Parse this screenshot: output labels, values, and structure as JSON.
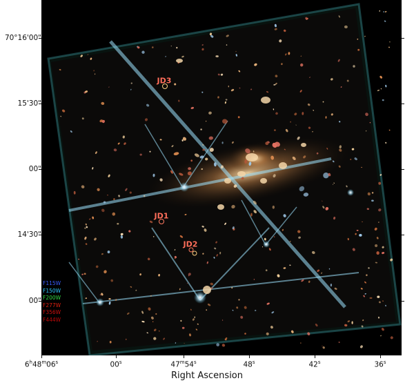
{
  "image": {
    "description_colors": {
      "background": "#000000",
      "edge_glow": "#0a2a2e"
    }
  },
  "axes": {
    "xlabel": "Right Ascension",
    "yticks": [
      "70°16'00\"",
      "15'30\"",
      "00\"",
      "14'30\"",
      "00\""
    ],
    "xticks": [
      {
        "main": "6",
        "sup1": "h",
        "mid": "48",
        "sup2": "m",
        "end": "06",
        "sup3": "s"
      },
      {
        "main": "00",
        "sup3": "s"
      },
      {
        "main": "47",
        "sup2": "m",
        "end": "54",
        "sup3": "s"
      },
      {
        "main": "48",
        "sup3": "s"
      },
      {
        "main": "42",
        "sup3": "s"
      },
      {
        "main": "36",
        "sup3": "s"
      }
    ]
  },
  "labels": [
    {
      "text": "JD3",
      "color": "#ff6e5a"
    },
    {
      "text": "JD1",
      "color": "#ff6e5a"
    },
    {
      "text": "JD2",
      "color": "#ff6e5a"
    }
  ],
  "legend": [
    {
      "text": "F115W",
      "color": "#3a5cff"
    },
    {
      "text": "F150W",
      "color": "#2ec8ff"
    },
    {
      "text": "F200W",
      "color": "#33dd44"
    },
    {
      "text": "F277W",
      "color": "#e02010"
    },
    {
      "text": "F356W",
      "color": "#d01010"
    },
    {
      "text": "F444W",
      "color": "#c00808"
    }
  ]
}
